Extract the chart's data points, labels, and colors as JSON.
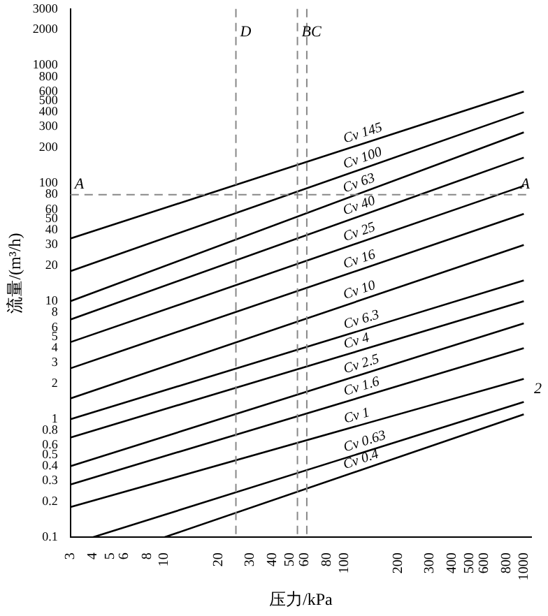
{
  "chart_data": {
    "type": "line",
    "xlabel": "压力/kPa",
    "ylabel": "流量/(m³/h)",
    "log": "xy",
    "grid": false,
    "legend": false,
    "marker": "none",
    "line_style": "solid",
    "xlim": [
      3,
      1100
    ],
    "xticks": [
      3,
      4,
      5,
      6,
      8,
      10,
      20,
      30,
      40,
      50,
      60,
      80,
      100,
      200,
      300,
      400,
      500,
      600,
      800,
      1000
    ],
    "ylim": [
      0.1,
      3000
    ],
    "yticks": [
      0.1,
      0.2,
      0.3,
      0.4,
      0.5,
      0.6,
      0.8,
      1,
      2,
      3,
      4,
      5,
      6,
      8,
      10,
      20,
      30,
      40,
      50,
      60,
      80,
      100,
      200,
      300,
      400,
      500,
      600,
      800,
      1000,
      2000,
      3000
    ],
    "series": [
      {
        "name": "Cv 145",
        "color": "#000000",
        "x": [
          3,
          1000
        ],
        "values": [
          34,
          600
        ]
      },
      {
        "name": "Cv 100",
        "color": "#000000",
        "x": [
          3,
          1000
        ],
        "values": [
          18,
          400
        ]
      },
      {
        "name": "Cv 63",
        "color": "#000000",
        "x": [
          3,
          1000
        ],
        "values": [
          10,
          270
        ]
      },
      {
        "name": "Cv 40",
        "color": "#000000",
        "x": [
          3,
          1000
        ],
        "values": [
          7,
          165
        ]
      },
      {
        "name": "Cv 25",
        "color": "#000000",
        "x": [
          3,
          1000
        ],
        "values": [
          4.5,
          95
        ]
      },
      {
        "name": "Cv 16",
        "color": "#000000",
        "x": [
          3,
          1000
        ],
        "values": [
          2.7,
          55
        ]
      },
      {
        "name": "Cv 10",
        "color": "#000000",
        "x": [
          3,
          1000
        ],
        "values": [
          1.5,
          30
        ]
      },
      {
        "name": "Cv 6.3",
        "color": "#000000",
        "x": [
          3,
          1000
        ],
        "values": [
          1,
          15
        ]
      },
      {
        "name": "Cv 4",
        "color": "#000000",
        "x": [
          3,
          1000
        ],
        "values": [
          0.7,
          10
        ]
      },
      {
        "name": "Cv 2.5",
        "color": "#000000",
        "x": [
          3,
          1000
        ],
        "values": [
          0.4,
          6.5
        ]
      },
      {
        "name": "Cv 1.6",
        "color": "#000000",
        "x": [
          3,
          1000
        ],
        "values": [
          0.28,
          4
        ]
      },
      {
        "name": "Cv 1",
        "color": "#000000",
        "x": [
          3,
          1000
        ],
        "values": [
          0.18,
          2.2
        ]
      },
      {
        "name": "Cv 0.63",
        "color": "#000000",
        "x": [
          4,
          1000
        ],
        "values": [
          0.1,
          1.4
        ]
      },
      {
        "name": "Cv 0.4",
        "color": "#000000",
        "x": [
          10,
          1000
        ],
        "values": [
          0.1,
          1.1
        ]
      }
    ],
    "ref_lines": [
      {
        "axis": "y",
        "value": 80,
        "label": "A",
        "color": "#888888",
        "line_style": "dashed"
      },
      {
        "axis": "x",
        "value": 55,
        "label": "B",
        "color": "#888888",
        "line_style": "dashed"
      },
      {
        "axis": "x",
        "value": 25,
        "label": "D",
        "color": "#888888",
        "line_style": "dashed"
      },
      {
        "axis": "x",
        "value": 62,
        "label": "C",
        "color": "#888888",
        "line_style": "dashed"
      }
    ],
    "annotations": [
      "2"
    ]
  }
}
